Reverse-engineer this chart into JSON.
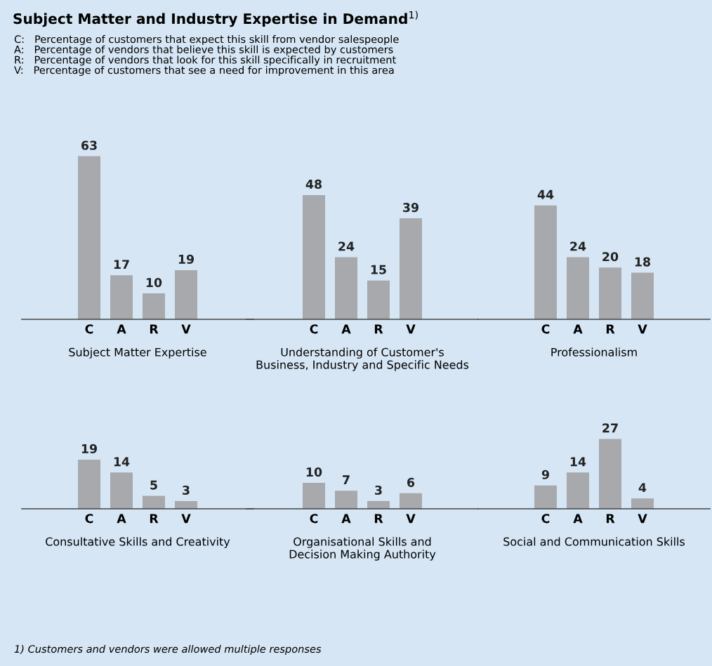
{
  "chart_data": [
    {
      "type": "other",
      "title": "Subject Matter and Industry Expertise in Demand$^{1)}$",
      "subtitle": "C:   Percentage of customers that expect this skill from vendor salespeople\nA:   Percentage of vendors that believe this skill is expected by customers\nR:   Percentage of vendors that look for this skill specifically in recruitment\nV:   Percentage of customers that see a need for improvement in this area",
      "annotations": [
        "1) Customers and vendors were allowed multiple responses"
      ]
    },
    {
      "type": "bar",
      "xlabel": "Subject Matter Expertise",
      "categories": [
        "C",
        "A",
        "R",
        "V"
      ],
      "values": [
        63,
        17,
        10,
        19
      ],
      "color": "#a7a9ac",
      "data_labels": true
    },
    {
      "type": "bar",
      "xlabel": "Understanding of Customer's\nBusiness, Industry and Specific Needs",
      "categories": [
        "C",
        "A",
        "R",
        "V"
      ],
      "values": [
        48,
        24,
        15,
        39
      ],
      "color": "#a7a9ac",
      "data_labels": true
    },
    {
      "type": "bar",
      "xlabel": "Professionalism",
      "categories": [
        "C",
        "A",
        "R",
        "V"
      ],
      "values": [
        44,
        24,
        20,
        18
      ],
      "color": "#a7a9ac",
      "data_labels": true
    },
    {
      "type": "bar",
      "xlabel": "Consultative Skills and Creativity",
      "categories": [
        "C",
        "A",
        "R",
        "V"
      ],
      "values": [
        19,
        14,
        5,
        3
      ],
      "color": "#a7a9ac",
      "data_labels": true
    },
    {
      "type": "bar",
      "xlabel": "Organisational Skills and\nDecision Making Authority",
      "categories": [
        "C",
        "A",
        "R",
        "V"
      ],
      "values": [
        10,
        7,
        3,
        6
      ],
      "color": "#a7a9ac",
      "data_labels": true
    },
    {
      "type": "bar",
      "xlabel": "Social and Communication Skills",
      "categories": [
        "C",
        "A",
        "R",
        "V"
      ],
      "values": [
        9,
        14,
        27,
        4
      ],
      "color": "#a7a9ac",
      "data_labels": true
    }
  ]
}
